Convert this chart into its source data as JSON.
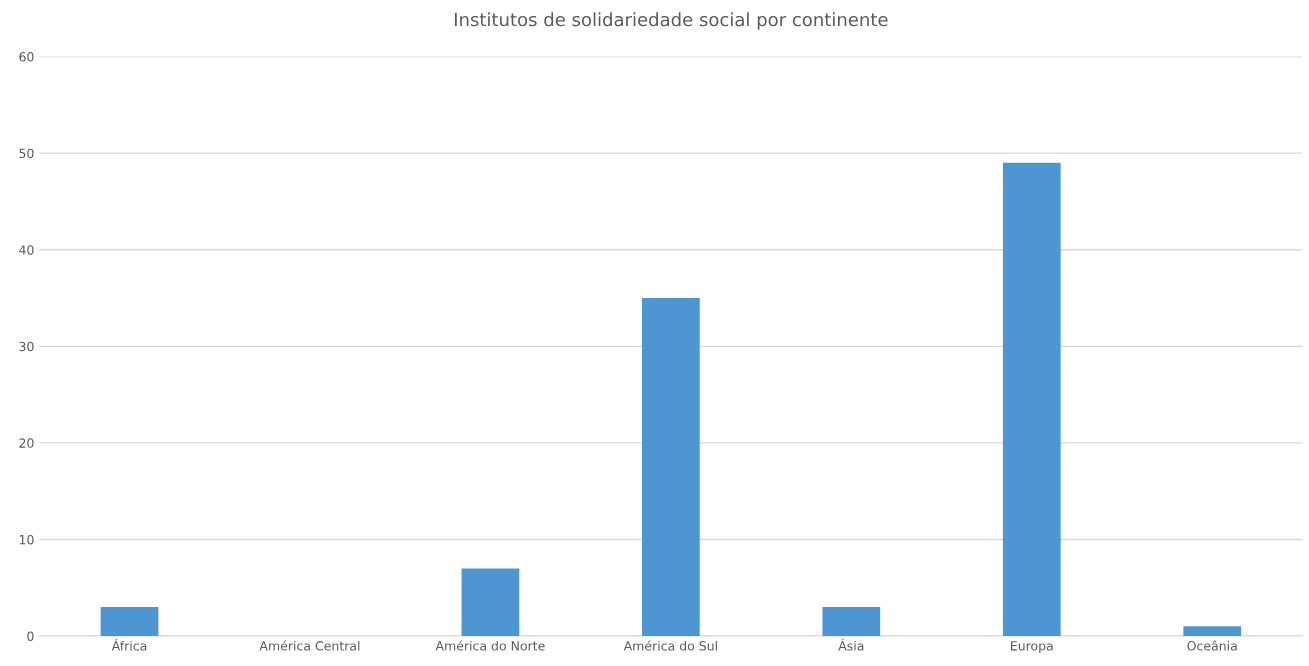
{
  "chart_data": {
    "type": "bar",
    "title": "Institutos de solidariedade social por continente",
    "categories": [
      "África",
      "América Central",
      "América do Norte",
      "América do Sul",
      "Ásia",
      "Europa",
      "Oceânia"
    ],
    "values": [
      3,
      null,
      7,
      35,
      3,
      49,
      1
    ],
    "color": "#4e96d2",
    "ylim": [
      0,
      60
    ],
    "yticks": [
      0,
      10,
      20,
      30,
      40,
      50,
      60
    ],
    "grid": "y"
  }
}
